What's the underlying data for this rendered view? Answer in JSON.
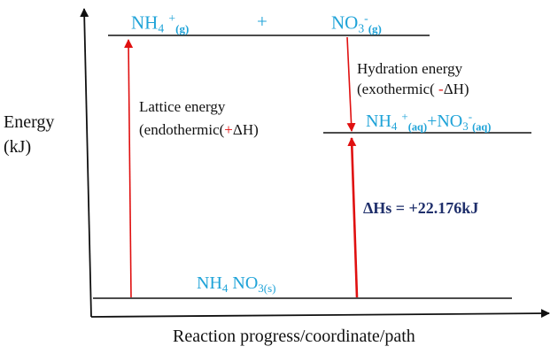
{
  "axes": {
    "y_label_line1": "Energy",
    "y_label_line2": "(kJ)",
    "x_label": "Reaction progress/coordinate/path"
  },
  "gas_level": {
    "ion1_base": "NH",
    "ion1_sub": "4",
    "ion1_sup": "+",
    "ion1_state": "(g)",
    "plus": "+",
    "ion2_base": "NO",
    "ion2_sub": "3",
    "ion2_sup": "-",
    "ion2_state": "(g)"
  },
  "aqueous_level": {
    "ion1_base": "NH",
    "ion1_sub": "4",
    "ion1_sup": "+",
    "ion1_state": "(aq)",
    "plus": "+",
    "ion2_base": "NO",
    "ion2_sub": "3",
    "ion2_sup": "-",
    "ion2_state": "(aq)"
  },
  "solid_level": {
    "base": "NH",
    "sub1": "4",
    "mid": " NO",
    "sub2": "3(s)"
  },
  "lattice": {
    "line1": "Lattice energy",
    "line2_pre": "(endothermic(",
    "line2_sign": "+",
    "line2_post": "ΔH)"
  },
  "hydration": {
    "line1": "Hydration energy",
    "line2_pre": "(exothermic( ",
    "line2_sign": "-",
    "line2_post": "ΔH)"
  },
  "delta_hs": "ΔHs = +22.176kJ",
  "colors": {
    "species": "#1fa3d8",
    "arrow": "#e01010",
    "delta": "#1f2f6b",
    "axis": "#111111"
  }
}
